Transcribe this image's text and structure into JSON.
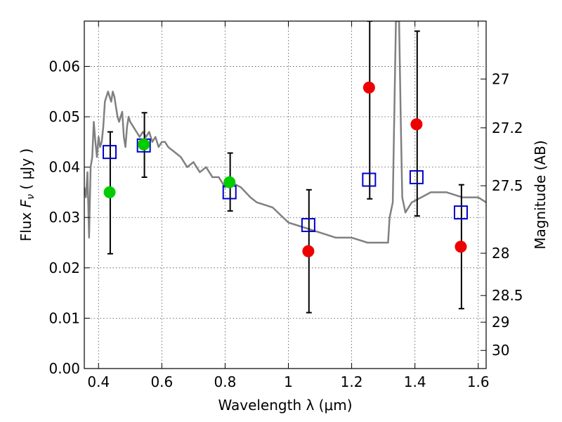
{
  "chart_data": {
    "type": "scatter",
    "xlabel": "Wavelength  λ (μm)",
    "ylabel": "Flux  Fν  ( μJy )",
    "y2label": "Magnitude (AB)",
    "xlim": [
      0.355,
      1.625
    ],
    "ylim": [
      0.0,
      0.069
    ],
    "x_ticks": [
      0.4,
      0.6,
      0.8,
      1.0,
      1.2,
      1.4,
      1.6
    ],
    "x_tick_labels": [
      "0.4",
      "0.6",
      "0.8",
      "1",
      "1.2",
      "1.4",
      "1.6"
    ],
    "y_ticks": [
      0.0,
      0.01,
      0.02,
      0.03,
      0.04,
      0.05,
      0.06
    ],
    "y_tick_labels": [
      "0.00",
      "0.01",
      "0.02",
      "0.03",
      "0.04",
      "0.05",
      "0.06"
    ],
    "y2_ticks": [
      {
        "label": "27",
        "flux": 0.0575
      },
      {
        "label": "27.2",
        "flux": 0.0478
      },
      {
        "label": "27.5",
        "flux": 0.0363
      },
      {
        "label": "28",
        "flux": 0.0229
      },
      {
        "label": "28.5",
        "flux": 0.0145
      },
      {
        "label": "29",
        "flux": 0.0092
      },
      {
        "label": "30",
        "flux": 0.0036
      }
    ],
    "grid": true,
    "series": [
      {
        "name": "model-spectrum",
        "kind": "line",
        "color": "#808080",
        "x": [
          0.355,
          0.36,
          0.365,
          0.37,
          0.375,
          0.38,
          0.385,
          0.39,
          0.395,
          0.4,
          0.405,
          0.41,
          0.415,
          0.42,
          0.425,
          0.43,
          0.435,
          0.44,
          0.445,
          0.45,
          0.455,
          0.46,
          0.465,
          0.47,
          0.475,
          0.48,
          0.485,
          0.49,
          0.495,
          0.5,
          0.51,
          0.52,
          0.53,
          0.54,
          0.55,
          0.56,
          0.57,
          0.58,
          0.59,
          0.6,
          0.61,
          0.62,
          0.64,
          0.66,
          0.68,
          0.7,
          0.72,
          0.74,
          0.76,
          0.78,
          0.8,
          0.82,
          0.85,
          0.88,
          0.9,
          0.95,
          1.0,
          1.05,
          1.1,
          1.15,
          1.2,
          1.25,
          1.3,
          1.315,
          1.32,
          1.33,
          1.34,
          1.35,
          1.355,
          1.36,
          1.37,
          1.39,
          1.42,
          1.45,
          1.5,
          1.55,
          1.6,
          1.625
        ],
        "y": [
          0.036,
          0.034,
          0.039,
          0.026,
          0.04,
          0.042,
          0.049,
          0.045,
          0.042,
          0.046,
          0.044,
          0.045,
          0.048,
          0.053,
          0.054,
          0.055,
          0.054,
          0.053,
          0.055,
          0.054,
          0.052,
          0.05,
          0.049,
          0.05,
          0.051,
          0.046,
          0.044,
          0.048,
          0.05,
          0.049,
          0.048,
          0.047,
          0.046,
          0.047,
          0.046,
          0.047,
          0.045,
          0.046,
          0.044,
          0.045,
          0.045,
          0.044,
          0.043,
          0.042,
          0.04,
          0.041,
          0.039,
          0.04,
          0.038,
          0.038,
          0.036,
          0.037,
          0.036,
          0.034,
          0.033,
          0.032,
          0.029,
          0.028,
          0.027,
          0.026,
          0.026,
          0.025,
          0.025,
          0.025,
          0.03,
          0.033,
          0.069,
          0.069,
          0.05,
          0.034,
          0.031,
          0.033,
          0.034,
          0.035,
          0.035,
          0.034,
          0.034,
          0.033
        ]
      },
      {
        "name": "blue-squares",
        "kind": "marker",
        "color": "#0000cc",
        "x": [
          0.435,
          0.543,
          0.814,
          1.063,
          1.255,
          1.405,
          1.545
        ],
        "y": [
          0.043,
          0.0443,
          0.035,
          0.0285,
          0.0375,
          0.038,
          0.031
        ]
      },
      {
        "name": "green-points",
        "kind": "marker",
        "color": "#00cc00",
        "x": [
          0.435,
          0.543,
          0.814
        ],
        "y": [
          0.035,
          0.0445,
          0.037
        ]
      },
      {
        "name": "red-points",
        "kind": "marker",
        "color": "#ee0000",
        "x": [
          1.063,
          1.255,
          1.405,
          1.545
        ],
        "y": [
          0.0233,
          0.0558,
          0.0485,
          0.0242
        ]
      }
    ],
    "error_bars": [
      {
        "x": 0.437,
        "low": 0.0228,
        "high": 0.047
      },
      {
        "x": 0.545,
        "low": 0.038,
        "high": 0.0508
      },
      {
        "x": 0.816,
        "low": 0.0313,
        "high": 0.0428
      },
      {
        "x": 1.065,
        "low": 0.0111,
        "high": 0.0355
      },
      {
        "x": 1.257,
        "low": 0.0337,
        "high": 0.069
      },
      {
        "x": 1.407,
        "low": 0.0303,
        "high": 0.067
      },
      {
        "x": 1.547,
        "low": 0.0119,
        "high": 0.0365
      }
    ]
  }
}
